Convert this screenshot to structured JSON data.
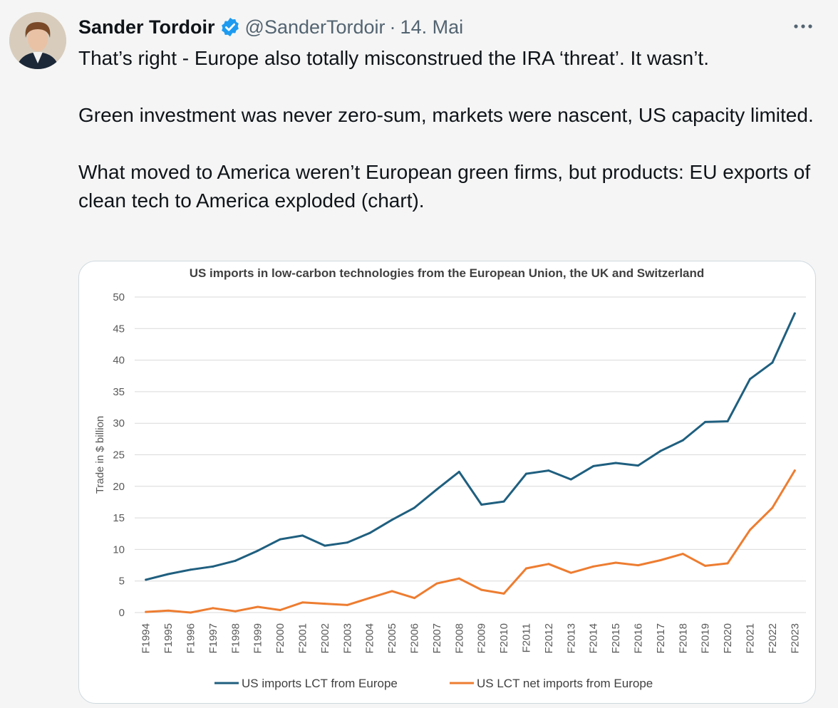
{
  "tweet": {
    "author_name": "Sander Tordoir",
    "handle": "@SanderTordoir",
    "separator": "·",
    "date": "14. Mai",
    "paragraphs": [
      "That’s right - Europe also totally misconstrued the IRA ‘threat’. It wasn’t.",
      "Green investment was never zero-sum, markets were nascent, US capacity limited.",
      "What moved to America weren’t European green firms, but products: EU exports of clean tech to America exploded (chart)."
    ]
  },
  "icons": {
    "verified": "verified-badge-icon",
    "more": "more-options-icon"
  },
  "colors": {
    "verified_blue": "#1d9bf0",
    "series1": "#1f5f7f",
    "series2": "#ed7d31"
  },
  "chart_data": {
    "type": "line",
    "title": "US imports in low-carbon technologies from the European Union, the UK and Switzerland",
    "xlabel": "",
    "ylabel": "Trade in $ billion",
    "ylim": [
      0,
      50
    ],
    "yticks": [
      0,
      5,
      10,
      15,
      20,
      25,
      30,
      35,
      40,
      45,
      50
    ],
    "grid": true,
    "legend_position": "bottom",
    "categories": [
      "F1994",
      "F1995",
      "F1996",
      "F1997",
      "F1998",
      "F1999",
      "F2000",
      "F2001",
      "F2002",
      "F2003",
      "F2004",
      "F2005",
      "F2006",
      "F2007",
      "F2008",
      "F2009",
      "F2010",
      "F2011",
      "F2012",
      "F2013",
      "F2014",
      "F2015",
      "F2016",
      "F2017",
      "F2018",
      "F2019",
      "F2020",
      "F2021",
      "F2022",
      "F2023"
    ],
    "series": [
      {
        "name": "US imports LCT from Europe",
        "values": [
          5.2,
          6.1,
          6.8,
          7.3,
          8.2,
          9.8,
          11.6,
          12.2,
          10.6,
          11.1,
          12.6,
          14.7,
          16.6,
          19.5,
          22.3,
          17.1,
          17.6,
          22.0,
          22.5,
          21.1,
          23.2,
          23.7,
          23.3,
          25.6,
          27.3,
          30.2,
          30.3,
          37.0,
          39.6,
          47.4
        ]
      },
      {
        "name": "US LCT net imports from Europe",
        "values": [
          0.1,
          0.3,
          0.0,
          0.7,
          0.2,
          0.9,
          0.4,
          1.6,
          1.4,
          1.2,
          2.3,
          3.4,
          2.3,
          4.6,
          5.4,
          3.6,
          3.0,
          7.0,
          7.7,
          6.3,
          7.3,
          7.9,
          7.5,
          8.3,
          9.3,
          7.4,
          7.8,
          13.1,
          16.6,
          22.5
        ]
      }
    ]
  }
}
